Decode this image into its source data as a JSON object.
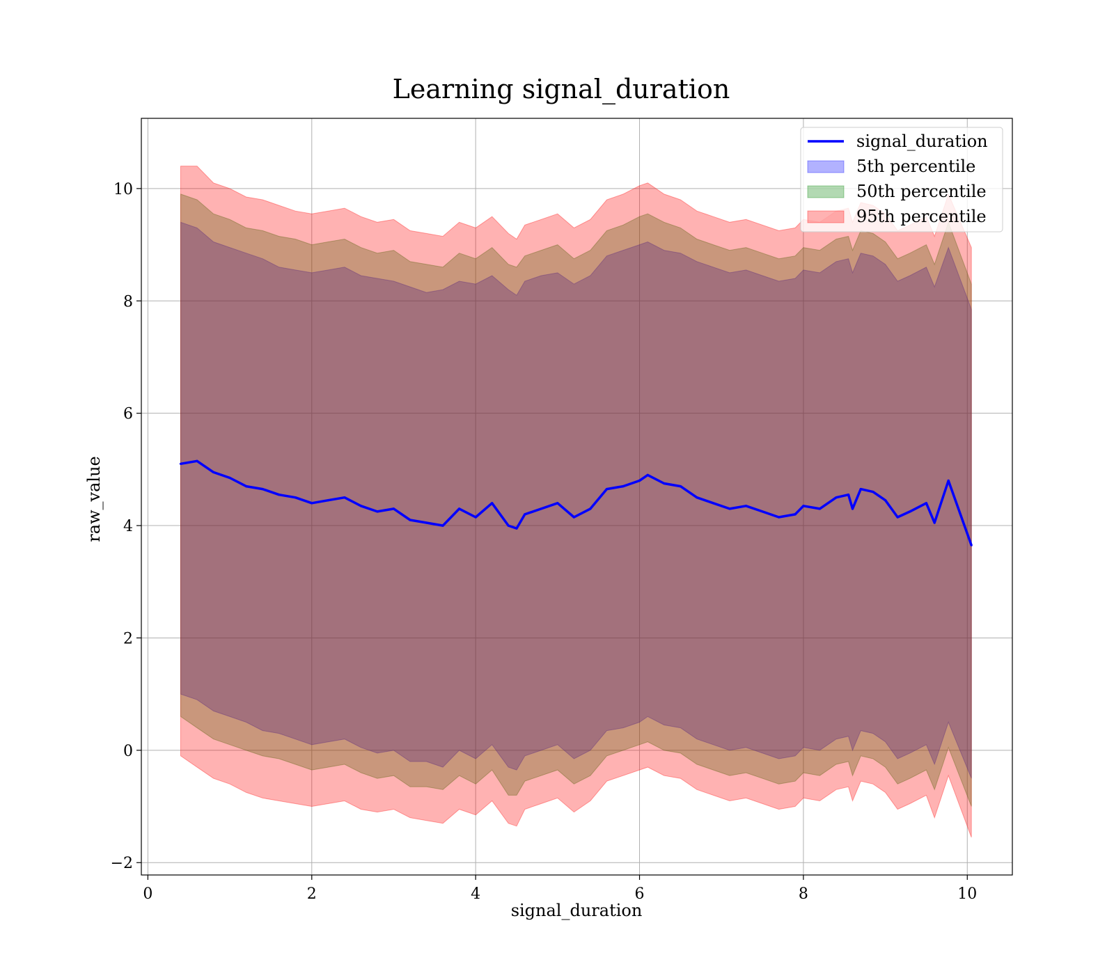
{
  "chart_data": {
    "type": "area",
    "title": "Learning signal_duration",
    "xlabel": "signal_duration",
    "ylabel": "raw_value",
    "xlim": [
      -0.08,
      10.55
    ],
    "ylim": [
      -2.22,
      11.25
    ],
    "xticks": [
      0,
      2,
      4,
      6,
      8,
      10
    ],
    "yticks": [
      -2,
      0,
      2,
      4,
      6,
      8,
      10
    ],
    "xtick_labels": [
      "0",
      "2",
      "4",
      "6",
      "8",
      "10"
    ],
    "ytick_labels": [
      "−2",
      "0",
      "2",
      "4",
      "6",
      "8",
      "10"
    ],
    "grid": true,
    "legend_position": "top-right",
    "x": [
      0.4,
      0.6,
      0.8,
      1.0,
      1.2,
      1.4,
      1.6,
      1.8,
      2.0,
      2.2,
      2.4,
      2.6,
      2.8,
      3.0,
      3.2,
      3.4,
      3.6,
      3.8,
      4.0,
      4.2,
      4.4,
      4.5,
      4.6,
      4.8,
      5.0,
      5.2,
      5.4,
      5.6,
      5.8,
      6.0,
      6.1,
      6.3,
      6.5,
      6.7,
      6.9,
      7.1,
      7.3,
      7.5,
      7.7,
      7.9,
      8.0,
      8.2,
      8.4,
      8.55,
      8.6,
      8.7,
      8.85,
      9.0,
      9.15,
      9.3,
      9.5,
      9.6,
      9.77,
      10.05
    ],
    "mean": [
      5.1,
      5.15,
      4.95,
      4.85,
      4.7,
      4.65,
      4.55,
      4.5,
      4.4,
      4.45,
      4.5,
      4.35,
      4.25,
      4.3,
      4.1,
      4.05,
      4.0,
      4.3,
      4.15,
      4.4,
      4.0,
      3.95,
      4.2,
      4.3,
      4.4,
      4.15,
      4.3,
      4.65,
      4.7,
      4.8,
      4.9,
      4.75,
      4.7,
      4.5,
      4.4,
      4.3,
      4.35,
      4.25,
      4.15,
      4.2,
      4.35,
      4.3,
      4.5,
      4.55,
      4.3,
      4.65,
      4.6,
      4.45,
      4.15,
      4.25,
      4.4,
      4.05,
      4.8,
      3.65
    ],
    "series": [
      {
        "name": "5th percentile",
        "color": "#0000ff",
        "lower": [
          1.0,
          0.9,
          0.7,
          0.6,
          0.5,
          0.35,
          0.3,
          0.2,
          0.1,
          0.15,
          0.2,
          0.05,
          -0.05,
          0.0,
          -0.2,
          -0.2,
          -0.3,
          0.0,
          -0.15,
          0.1,
          -0.3,
          -0.35,
          -0.1,
          0.0,
          0.1,
          -0.15,
          0.0,
          0.35,
          0.4,
          0.5,
          0.6,
          0.45,
          0.4,
          0.2,
          0.1,
          0.0,
          0.05,
          -0.05,
          -0.15,
          -0.1,
          0.05,
          0.0,
          0.2,
          0.25,
          0.0,
          0.35,
          0.3,
          0.15,
          -0.15,
          -0.05,
          0.1,
          -0.25,
          0.5,
          -0.5
        ],
        "upper": [
          9.4,
          9.3,
          9.05,
          8.95,
          8.85,
          8.75,
          8.6,
          8.55,
          8.5,
          8.55,
          8.6,
          8.45,
          8.4,
          8.35,
          8.25,
          8.15,
          8.2,
          8.35,
          8.3,
          8.45,
          8.2,
          8.1,
          8.35,
          8.45,
          8.5,
          8.3,
          8.45,
          8.8,
          8.9,
          9.0,
          9.05,
          8.9,
          8.85,
          8.7,
          8.6,
          8.5,
          8.55,
          8.45,
          8.35,
          8.4,
          8.55,
          8.5,
          8.7,
          8.75,
          8.5,
          8.85,
          8.8,
          8.65,
          8.35,
          8.45,
          8.6,
          8.25,
          8.95,
          7.85
        ]
      },
      {
        "name": "50th percentile",
        "color": "#008000",
        "lower": [
          0.6,
          0.4,
          0.2,
          0.1,
          0.0,
          -0.1,
          -0.15,
          -0.25,
          -0.35,
          -0.3,
          -0.25,
          -0.4,
          -0.5,
          -0.45,
          -0.65,
          -0.65,
          -0.7,
          -0.45,
          -0.6,
          -0.35,
          -0.8,
          -0.8,
          -0.55,
          -0.45,
          -0.35,
          -0.6,
          -0.45,
          -0.1,
          0.0,
          0.1,
          0.15,
          0.0,
          -0.05,
          -0.25,
          -0.35,
          -0.45,
          -0.4,
          -0.5,
          -0.6,
          -0.55,
          -0.4,
          -0.45,
          -0.25,
          -0.2,
          -0.45,
          -0.1,
          -0.15,
          -0.3,
          -0.6,
          -0.5,
          -0.35,
          -0.7,
          0.05,
          -1.0
        ],
        "upper": [
          9.9,
          9.8,
          9.55,
          9.45,
          9.3,
          9.25,
          9.15,
          9.1,
          9.0,
          9.05,
          9.1,
          8.95,
          8.85,
          8.9,
          8.7,
          8.65,
          8.6,
          8.85,
          8.75,
          8.95,
          8.65,
          8.6,
          8.8,
          8.9,
          9.0,
          8.75,
          8.9,
          9.25,
          9.35,
          9.5,
          9.55,
          9.4,
          9.3,
          9.1,
          9.0,
          8.9,
          8.95,
          8.85,
          8.75,
          8.8,
          8.95,
          8.9,
          9.1,
          9.15,
          8.9,
          9.25,
          9.2,
          9.05,
          8.75,
          8.85,
          9.0,
          8.65,
          9.4,
          8.3
        ]
      },
      {
        "name": "95th percentile",
        "color": "#ff0000",
        "lower": [
          -0.1,
          -0.3,
          -0.5,
          -0.6,
          -0.75,
          -0.85,
          -0.9,
          -0.95,
          -1.0,
          -0.95,
          -0.9,
          -1.05,
          -1.1,
          -1.05,
          -1.2,
          -1.25,
          -1.3,
          -1.05,
          -1.15,
          -0.9,
          -1.3,
          -1.35,
          -1.05,
          -0.95,
          -0.85,
          -1.1,
          -0.9,
          -0.55,
          -0.45,
          -0.35,
          -0.3,
          -0.45,
          -0.5,
          -0.7,
          -0.8,
          -0.9,
          -0.85,
          -0.95,
          -1.05,
          -1.0,
          -0.85,
          -0.9,
          -0.7,
          -0.65,
          -0.9,
          -0.55,
          -0.6,
          -0.75,
          -1.05,
          -0.95,
          -0.8,
          -1.2,
          -0.45,
          -1.55
        ],
        "upper": [
          10.4,
          10.4,
          10.1,
          10.0,
          9.85,
          9.8,
          9.7,
          9.6,
          9.55,
          9.6,
          9.65,
          9.5,
          9.4,
          9.45,
          9.25,
          9.2,
          9.15,
          9.4,
          9.3,
          9.5,
          9.2,
          9.1,
          9.35,
          9.45,
          9.55,
          9.3,
          9.45,
          9.8,
          9.9,
          10.05,
          10.1,
          9.9,
          9.8,
          9.6,
          9.5,
          9.4,
          9.45,
          9.35,
          9.25,
          9.3,
          9.45,
          9.4,
          9.6,
          9.65,
          9.4,
          9.75,
          9.7,
          9.55,
          9.25,
          9.35,
          9.5,
          9.15,
          9.9,
          8.95
        ]
      }
    ],
    "legend": [
      {
        "label": "signal_duration",
        "kind": "line",
        "color": "#0000ff"
      },
      {
        "label": "5th percentile",
        "kind": "patch",
        "color": "#0000ff"
      },
      {
        "label": "50th percentile",
        "kind": "patch",
        "color": "#008000"
      },
      {
        "label": "95th percentile",
        "kind": "patch",
        "color": "#ff0000"
      }
    ],
    "line_series": {
      "name": "signal_duration",
      "color": "#0000ff"
    }
  }
}
